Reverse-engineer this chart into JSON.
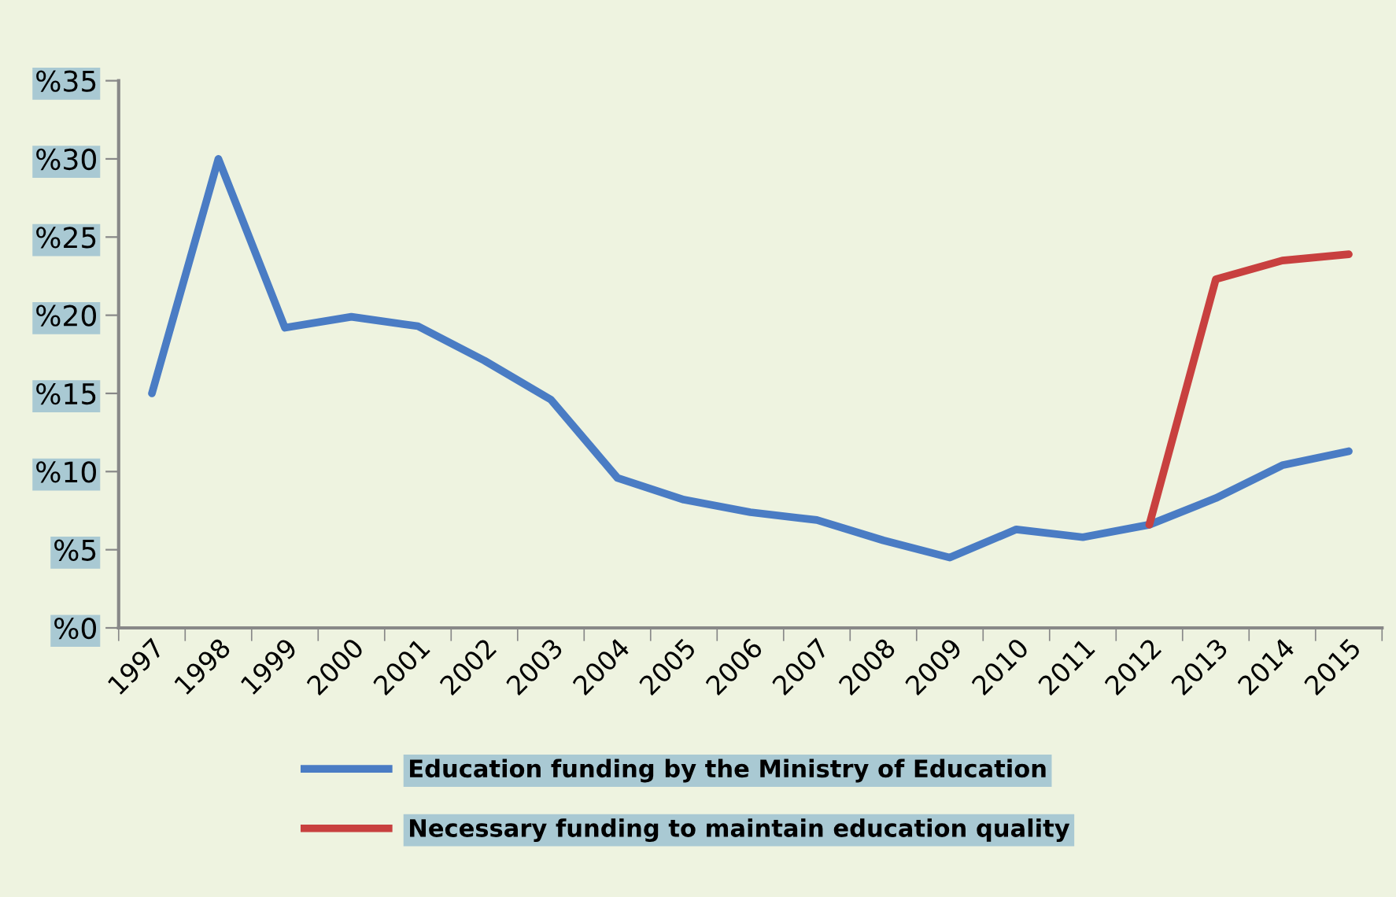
{
  "chart_data": {
    "type": "line",
    "categories": [
      "1997",
      "1998",
      "1999",
      "2000",
      "2001",
      "2002",
      "2003",
      "2004",
      "2005",
      "2006",
      "2007",
      "2008",
      "2009",
      "2010",
      "2011",
      "2012",
      "2013",
      "2014",
      "2015"
    ],
    "series": [
      {
        "name": "Education funding by the Ministry of Education",
        "color": "#4a7cc4",
        "values": [
          15,
          30,
          19.2,
          19.9,
          19.3,
          17.1,
          14.6,
          9.6,
          8.2,
          7.4,
          6.9,
          5.6,
          4.5,
          6.3,
          5.8,
          6.6,
          8.3,
          10.4,
          11.3
        ]
      },
      {
        "name": "Necessary funding to maintain education quality",
        "color": "#c8403f",
        "values": [
          null,
          null,
          null,
          null,
          null,
          null,
          null,
          null,
          null,
          null,
          null,
          null,
          null,
          null,
          null,
          6.6,
          22.3,
          23.5,
          23.9
        ]
      }
    ],
    "ylim": [
      0,
      35
    ],
    "yticks": [
      {
        "value": 0,
        "label": "%0"
      },
      {
        "value": 5,
        "label": "%5"
      },
      {
        "value": 10,
        "label": "%10"
      },
      {
        "value": 15,
        "label": "%15"
      },
      {
        "value": 20,
        "label": "%20"
      },
      {
        "value": 25,
        "label": "%25"
      },
      {
        "value": 30,
        "label": "%30"
      },
      {
        "value": 35,
        "label": "%35"
      }
    ],
    "grid": false,
    "legend": "bottom",
    "marker": "none",
    "line_style": "solid"
  }
}
